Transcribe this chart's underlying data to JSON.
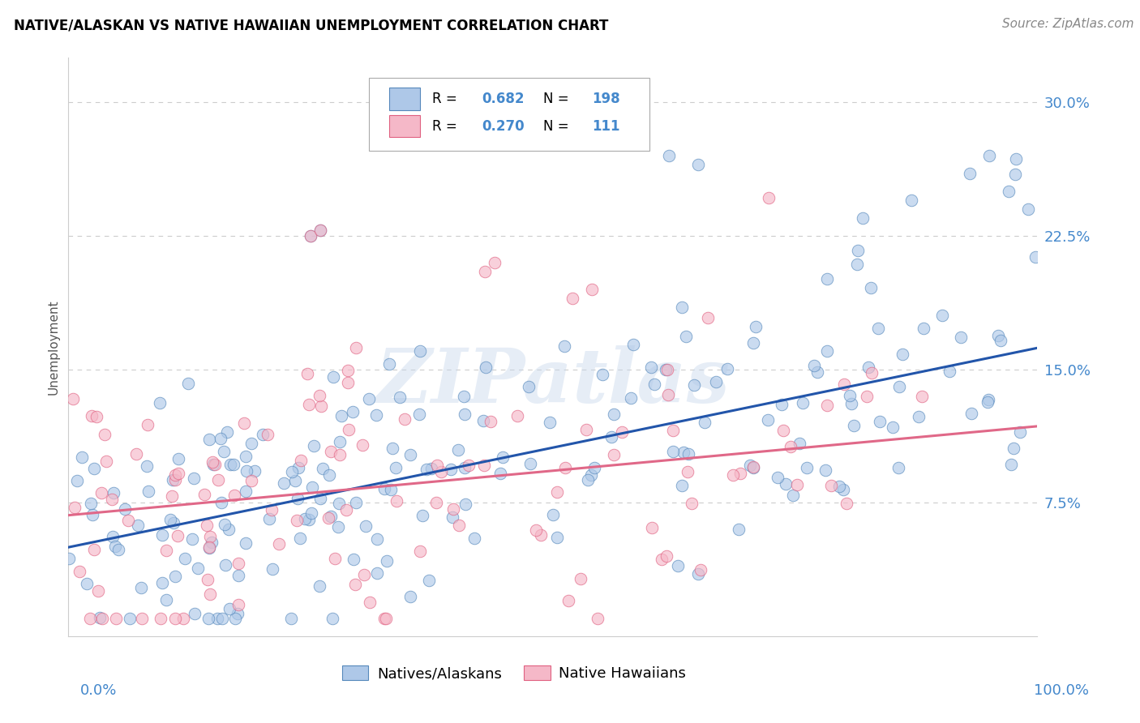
{
  "title": "NATIVE/ALASKAN VS NATIVE HAWAIIAN UNEMPLOYMENT CORRELATION CHART",
  "source": "Source: ZipAtlas.com",
  "ylabel": "Unemployment",
  "xmin": 0.0,
  "xmax": 100.0,
  "ymin": 0.0,
  "ymax": 0.325,
  "blue_color": "#aec8e8",
  "pink_color": "#f5b8c8",
  "blue_edge_color": "#5588bb",
  "pink_edge_color": "#e06080",
  "blue_line_color": "#2255aa",
  "pink_line_color": "#e06888",
  "blue_R": 0.682,
  "blue_N": 198,
  "pink_R": 0.27,
  "pink_N": 111,
  "legend_label_blue": "Natives/Alaskans",
  "legend_label_pink": "Native Hawaiians",
  "watermark": "ZIPatlas",
  "background_color": "#ffffff",
  "ytick_positions": [
    0.075,
    0.15,
    0.225,
    0.3
  ],
  "ytick_labels": [
    "7.5%",
    "15.0%",
    "22.5%",
    "30.0%"
  ],
  "blue_line_y0": 0.05,
  "blue_line_y1": 0.162,
  "pink_line_y0": 0.068,
  "pink_line_y1": 0.118,
  "tick_color": "#4488cc",
  "grid_color": "#cccccc",
  "title_fontsize": 12,
  "source_fontsize": 11,
  "tick_fontsize": 13,
  "axis_label_fontsize": 11
}
